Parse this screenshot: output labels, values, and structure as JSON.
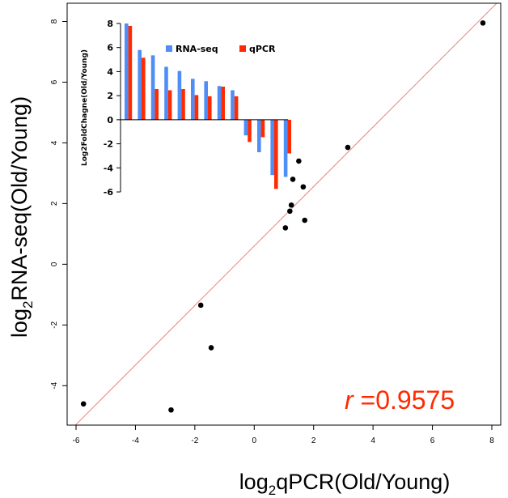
{
  "chart_data": [
    {
      "type": "scatter",
      "xlabel": {
        "prefix": "log",
        "sub": "2",
        "rest": "qPCR(Old/Young)"
      },
      "ylabel": {
        "prefix": "log",
        "sub": "2",
        "rest": "RNA-seq(Old/Young)"
      },
      "xlim": [
        -6.3,
        8.3
      ],
      "ylim": [
        -5.3,
        8.6
      ],
      "x_ticks": [
        "-6",
        "-4",
        "-2",
        "0",
        "2",
        "4",
        "6",
        "8"
      ],
      "y_ticks": [
        "-4",
        "-2",
        "0",
        "2",
        "4",
        "6",
        "8"
      ],
      "points": [
        {
          "x": 7.7,
          "y": 7.95
        },
        {
          "x": 3.15,
          "y": 3.85
        },
        {
          "x": 1.5,
          "y": 3.4
        },
        {
          "x": 1.65,
          "y": 2.55
        },
        {
          "x": 1.3,
          "y": 2.8
        },
        {
          "x": 1.25,
          "y": 1.95
        },
        {
          "x": 1.2,
          "y": 1.75
        },
        {
          "x": 1.7,
          "y": 1.45
        },
        {
          "x": 1.05,
          "y": 1.2
        },
        {
          "x": -1.8,
          "y": -1.35
        },
        {
          "x": -1.45,
          "y": -2.75
        },
        {
          "x": -5.75,
          "y": -4.6
        },
        {
          "x": -2.8,
          "y": -4.8
        }
      ],
      "fit_line": {
        "intercept": 0.6,
        "slope": 0.98,
        "color": "#f08080"
      },
      "annotation": {
        "italic": "r",
        "text": " =0.9575",
        "color": "#ff2a00"
      }
    },
    {
      "type": "bar",
      "ylabel": "Log2FoldChagne(Old/Young)",
      "ylim": [
        -6.2,
        8.2
      ],
      "y_ticks": [
        "8",
        "6",
        "4",
        "2",
        "0",
        "-2",
        "-4",
        "-6"
      ],
      "series": [
        {
          "name": "RNA-seq",
          "color": "#4f8ef7",
          "values": [
            8.0,
            5.8,
            5.35,
            4.4,
            4.05,
            3.4,
            3.2,
            2.8,
            2.45,
            -1.3,
            -2.7,
            -4.6,
            -4.75
          ]
        },
        {
          "name": "qPCR",
          "color": "#ff2a00",
          "values": [
            7.8,
            5.15,
            2.55,
            2.45,
            2.55,
            2.05,
            1.95,
            2.75,
            1.95,
            -1.85,
            -1.45,
            -5.75,
            -2.8
          ]
        }
      ]
    }
  ]
}
